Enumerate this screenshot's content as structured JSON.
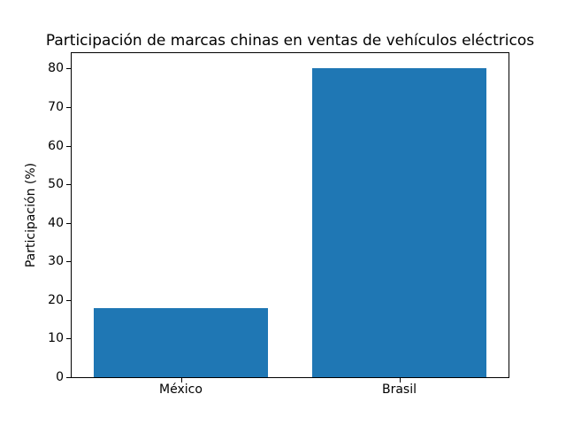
{
  "chart_data": {
    "type": "bar",
    "title": "Participación de marcas chinas en ventas de vehículos eléctricos",
    "categories": [
      "México",
      "Brasil"
    ],
    "values": [
      18,
      80
    ],
    "xlabel": "",
    "ylabel": "Participación (%)",
    "ylim": [
      0,
      84
    ],
    "yticks": [
      0,
      10,
      20,
      30,
      40,
      50,
      60,
      70,
      80
    ],
    "bar_color": "#1f77b4",
    "bar_width_fraction": 0.8,
    "grid": false,
    "legend_position": "none",
    "background_color": "#ffffff",
    "axis_color": "#000000"
  }
}
